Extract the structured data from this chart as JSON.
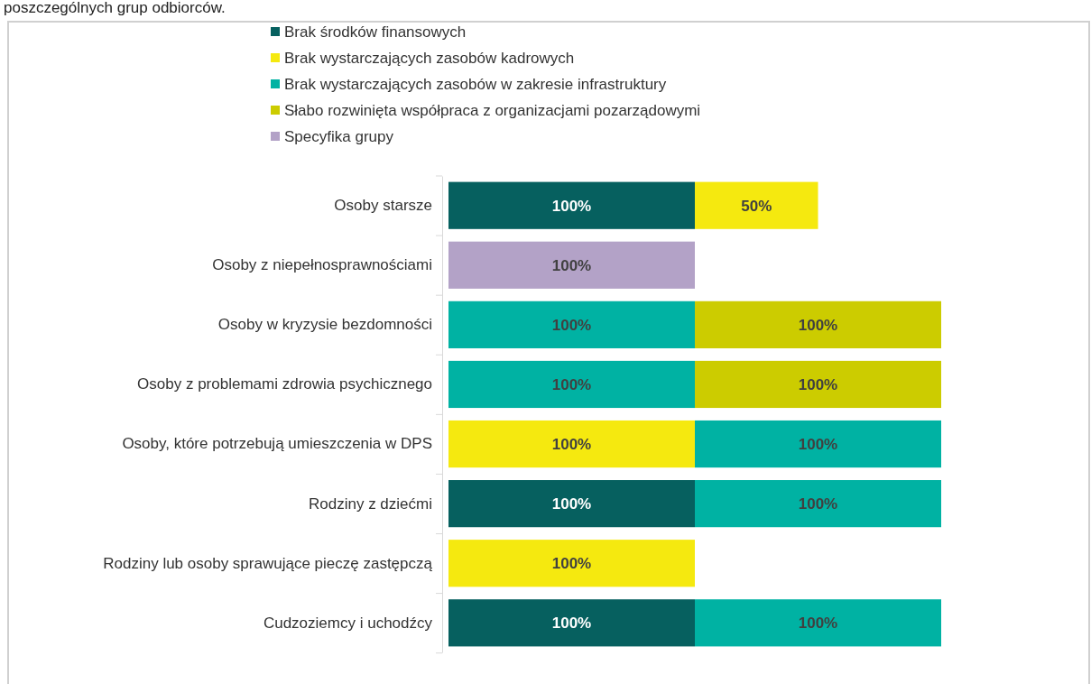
{
  "chart_data": {
    "type": "bar",
    "orientation": "horizontal",
    "stacked": true,
    "legend": "top",
    "tick_labels": "y",
    "title": "poszczególnych grup odbiorców.",
    "categories": [
      "Osoby starsze",
      "Osoby z niepełnosprawnościami",
      "Osoby w kryzysie bezdomności",
      "Osoby z problemami zdrowia psychicznego",
      "Osoby, które potrzebują umieszczenia w DPS",
      "Rodziny z dziećmi",
      "Rodziny lub osoby sprawujące pieczę zastępczą",
      "Cudzoziemcy i uchodźcy"
    ],
    "series": [
      {
        "name": "Brak środków finansowych",
        "color": "#06605f",
        "values": [
          100,
          null,
          null,
          null,
          null,
          100,
          null,
          100
        ],
        "value_labels": [
          "100%",
          null,
          null,
          null,
          null,
          "100%",
          null,
          "100%"
        ]
      },
      {
        "name": "Brak wystarczających zasobów kadrowych",
        "color": "#f5e90f",
        "values": [
          50,
          null,
          null,
          null,
          100,
          null,
          100,
          null
        ],
        "value_labels": [
          "50%",
          null,
          null,
          null,
          "100%",
          null,
          "100%",
          null
        ]
      },
      {
        "name": "Brak wystarczających zasobów w zakresie infrastruktury",
        "color": "#00b2a3",
        "values": [
          null,
          null,
          100,
          100,
          100,
          100,
          null,
          100
        ],
        "value_labels": [
          null,
          null,
          "100%",
          "100%",
          "100%",
          "100%",
          null,
          "100%"
        ]
      },
      {
        "name": "Słabo rozwinięta współpraca z organizacjami pozarządowymi",
        "color": "#cccc00",
        "values": [
          null,
          null,
          100,
          100,
          null,
          null,
          null,
          null
        ],
        "value_labels": [
          null,
          null,
          "100%",
          "100%",
          null,
          null,
          null,
          null
        ]
      },
      {
        "name": "Specyfika grupy",
        "color": "#b3a2c7",
        "values": [
          null,
          100,
          null,
          null,
          null,
          null,
          null,
          null
        ],
        "value_labels": [
          null,
          "100%",
          null,
          null,
          null,
          null,
          null,
          null
        ]
      }
    ]
  }
}
